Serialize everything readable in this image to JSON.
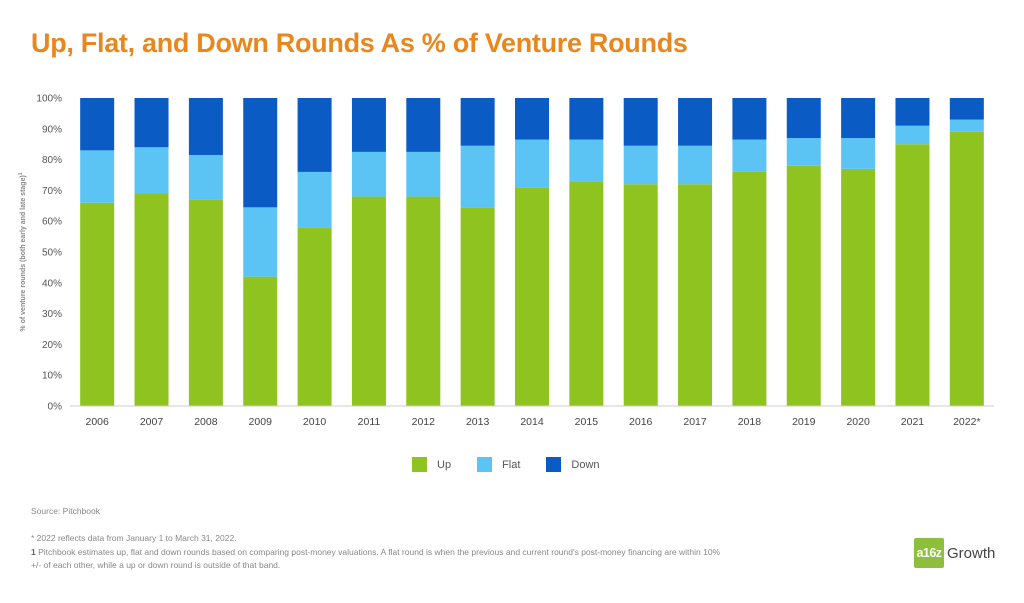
{
  "title": "Up, Flat, and Down Rounds As % of Venture Rounds",
  "legend": [
    {
      "label": "Up",
      "color": "#8fc31f"
    },
    {
      "label": "Flat",
      "color": "#5bc4f5"
    },
    {
      "label": "Down",
      "color": "#0a5bc4"
    }
  ],
  "source": "Source: Pitchbook",
  "note_1": "* 2022 reflects data from January 1 to March 31, 2022.",
  "note_2_marker": "1",
  "note_2": " Pitchbook estimates up, flat and down rounds based on comparing post-money valuations. A flat round is when the previous and current round's post-money financing are within 10% +/- of each other, while a up or down round is outside of that band.",
  "logo": {
    "badge": "a16z",
    "text": "Growth"
  },
  "chart_data": {
    "type": "bar",
    "stacked": true,
    "categories": [
      "2006",
      "2007",
      "2008",
      "2009",
      "2010",
      "2011",
      "2012",
      "2013",
      "2014",
      "2015",
      "2016",
      "2017",
      "2018",
      "2019",
      "2020",
      "2021",
      "2022*"
    ],
    "series": [
      {
        "name": "Up",
        "color": "#8fc31f",
        "values": [
          66,
          69,
          67,
          42,
          58,
          68,
          68,
          64.5,
          71,
          73,
          72,
          72,
          76,
          78,
          77,
          85,
          89
        ]
      },
      {
        "name": "Flat",
        "color": "#5bc4f5",
        "values": [
          17,
          15,
          14.5,
          22.5,
          18,
          14.5,
          14.5,
          20,
          15.5,
          13.5,
          12.5,
          12.5,
          10.5,
          9,
          10,
          6,
          4
        ]
      },
      {
        "name": "Down",
        "color": "#0a5bc4",
        "values": [
          17,
          16,
          18.5,
          35.5,
          24,
          17.5,
          17.5,
          15.5,
          13.5,
          13.5,
          15.5,
          15.5,
          13.5,
          13,
          13,
          9,
          7
        ]
      }
    ],
    "ylabel": "% of venture rounds (both early and late stage)",
    "ylabel_superscript": "1",
    "ylim": [
      0,
      100
    ],
    "yticks": [
      0,
      10,
      20,
      30,
      40,
      50,
      60,
      70,
      80,
      90,
      100
    ],
    "ytick_suffix": "%",
    "grid": false,
    "legend_position": "bottom-center"
  }
}
